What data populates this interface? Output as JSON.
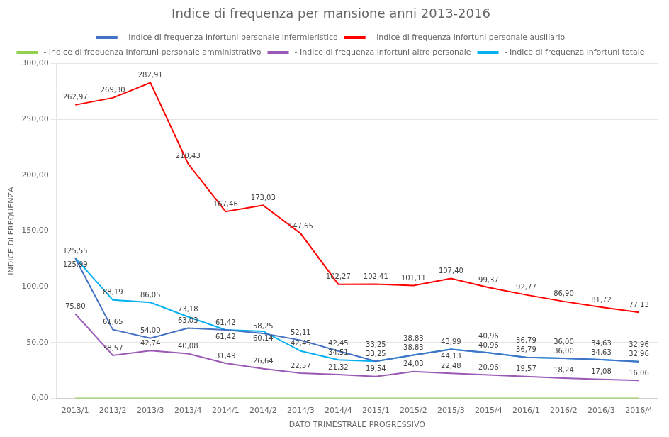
{
  "chart_data": {
    "type": "line",
    "title": "Indice di frequenza per mansione anni 2013-2016",
    "xlabel": "DATO TRIMESTRALE PROGRESSIVO",
    "ylabel": "INDICE DI FREQUENZA",
    "categories": [
      "2013/1",
      "2013/2",
      "2013/3",
      "2013/4",
      "2014/1",
      "2014/2",
      "2014/3",
      "2014/4",
      "2015/1",
      "2015/2",
      "2015/3",
      "2015/4",
      "2016/1",
      "2016/2",
      "2016/3",
      "2016/4"
    ],
    "series": [
      {
        "name": " - Indice di frequenza infortuni personale infermieristico",
        "color": "#4472c4",
        "values": [
          125.55,
          61.65,
          54.0,
          63.03,
          61.42,
          58.25,
          52.11,
          42.45,
          33.25,
          38.83,
          43.99,
          40.96,
          36.79,
          36.0,
          34.63,
          32.96
        ],
        "value_labels": [
          "125,55",
          "61,65",
          "54,00",
          "63,03",
          "61,42",
          "58,25",
          "52,11",
          "42,45",
          "33,25",
          "38,83",
          "43,99",
          "40,96",
          "36,79",
          "36,00",
          "34,63",
          "32,96"
        ]
      },
      {
        "name": " - Indice di frequenza infortuni personale ausiliario",
        "color": "#ff0000",
        "values": [
          262.97,
          269.3,
          282.91,
          210.43,
          167.46,
          173.03,
          147.65,
          102.27,
          102.41,
          101.11,
          107.4,
          99.37,
          92.77,
          86.9,
          81.72,
          77.13
        ],
        "value_labels": [
          "262,97",
          "269,30",
          "282,91",
          "210,43",
          "167,46",
          "173,03",
          "147,65",
          "102,27",
          "102,41",
          "101,11",
          "107,40",
          "99,37",
          "92,77",
          "86,90",
          "81,72",
          "77,13"
        ]
      },
      {
        "name": " - Indice di frequenza infortuni personale amministrativo",
        "color": "#92d050",
        "values": [
          0.0,
          0.0,
          0.0,
          0.0,
          0.0,
          0.0,
          0.0,
          0.0,
          0.0,
          0.0,
          0.0,
          0.0,
          0.0,
          0.0,
          0.0,
          0.0
        ],
        "value_labels": [
          null,
          null,
          null,
          null,
          null,
          null,
          null,
          null,
          null,
          null,
          null,
          null,
          null,
          null,
          null,
          null
        ]
      },
      {
        "name": " - Indice di frequenza infortuni altro personale",
        "color": "#9b59b6",
        "values": [
          75.8,
          38.57,
          42.74,
          40.08,
          31.49,
          26.64,
          22.57,
          21.32,
          19.54,
          24.03,
          22.48,
          20.96,
          19.57,
          18.24,
          17.08,
          16.06
        ],
        "value_labels": [
          "75,80",
          "38,57",
          "42,74",
          "40,08",
          "31,49",
          "26,64",
          "22,57",
          "21,32",
          "19,54",
          "24,03",
          "22,48",
          "20,96",
          "19,57",
          "18,24",
          "17,08",
          "16,06"
        ]
      },
      {
        "name": " - Indice di frequenza infortuni totale",
        "color": "#00b0f0",
        "values": [
          125.99,
          88.19,
          86.05,
          73.18,
          61.42,
          60.14,
          42.45,
          34.51,
          33.25,
          38.83,
          44.13,
          40.96,
          36.79,
          36.0,
          34.63,
          32.96
        ],
        "value_labels": [
          "125,99",
          "88,19",
          "86,05",
          "73,18",
          "61,42",
          "60,14",
          "42,45",
          "34,51",
          "33,25",
          "38,83",
          "44,13",
          "40,96",
          "36,79",
          "36,00",
          "34,63",
          "32,96"
        ]
      }
    ],
    "ylim": [
      0,
      300
    ],
    "yticks": [
      {
        "value": 0,
        "label": "0,00"
      },
      {
        "value": 50,
        "label": "50,00"
      },
      {
        "value": 100,
        "label": "100,00"
      },
      {
        "value": 150,
        "label": "150,00"
      },
      {
        "value": 200,
        "label": "200,00"
      },
      {
        "value": 250,
        "label": "250,00"
      },
      {
        "value": 300,
        "label": "300,00"
      }
    ],
    "grid": true,
    "legend": "top",
    "data_labels": true
  }
}
